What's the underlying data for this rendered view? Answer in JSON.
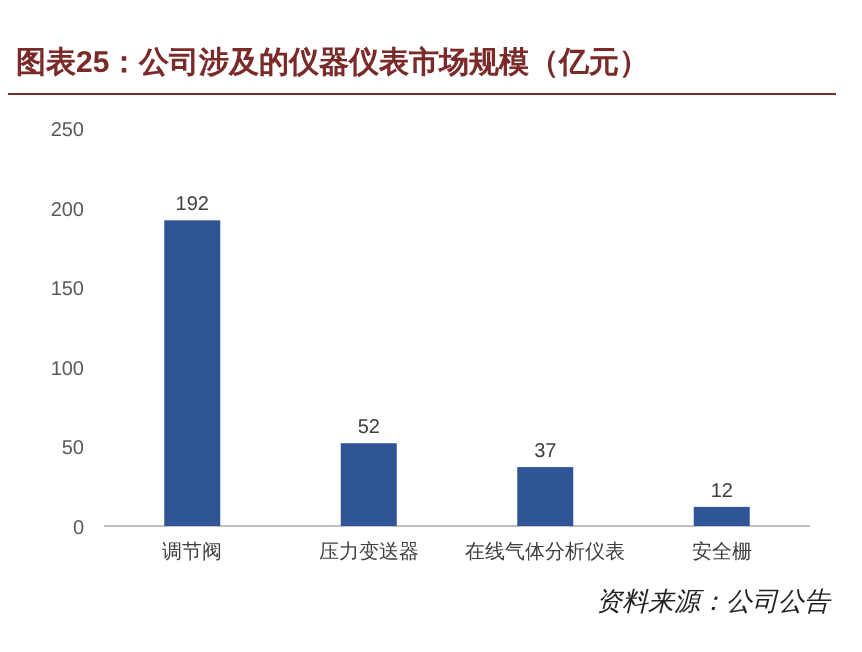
{
  "chart_data": {
    "type": "bar",
    "title": "图表25：公司涉及的仪器仪表市场规模（亿元）",
    "categories": [
      "调节阀",
      "压力变送器",
      "在线气体分析仪表",
      "安全栅"
    ],
    "values": [
      192,
      52,
      37,
      12
    ],
    "color": "#2f5597",
    "ylim": [
      0,
      250
    ],
    "yticks": [
      0,
      50,
      100,
      150,
      200,
      250
    ],
    "grid": false,
    "data_labels": true,
    "annotations": [
      "资料来源：公司公告"
    ]
  }
}
